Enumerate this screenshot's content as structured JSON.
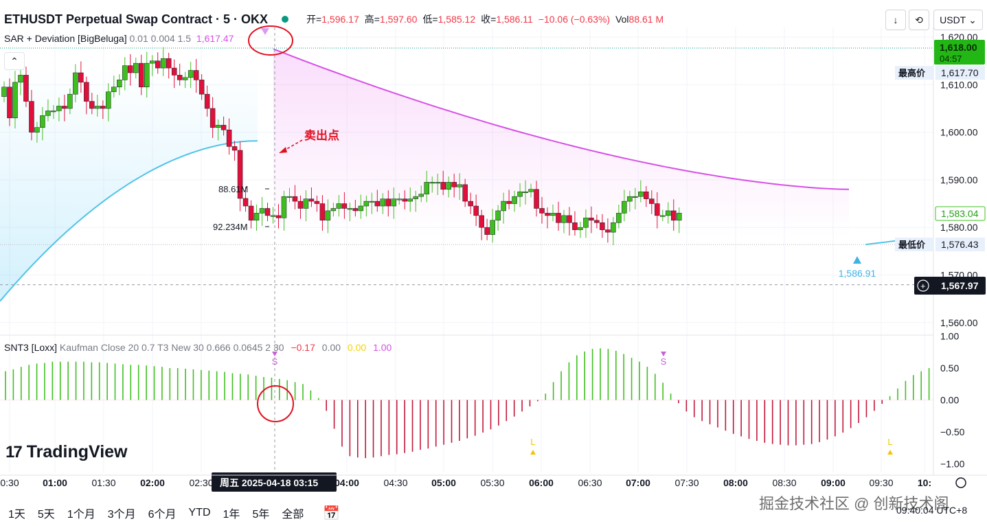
{
  "header": {
    "symbol": "ETHUSDT Perpetual Swap Contract · 5 · OKX",
    "open_label": "开=",
    "open": "1,596.17",
    "high_label": "高=",
    "high": "1,597.60",
    "low_label": "低=",
    "low": "1,585.12",
    "close_label": "收=",
    "close": "1,586.11",
    "change": "−10.06 (−0.63%)",
    "vol_label": "Vol",
    "vol": "88.61 M",
    "currency": "USDT",
    "status_color": "#089981"
  },
  "indicator1": {
    "name": "SAR + Deviation [BigBeluga]",
    "params": "0.01 0.004 1.5",
    "value": "1,617.47"
  },
  "indicator2": {
    "name": "SNT3 [Loxx]",
    "params": "Kaufman Close 20 0.7 T3 New 30 0.666 0.0645 2 30",
    "v1": "−0.17",
    "v2": "0.00",
    "v3": "0.00",
    "v4": "1.00"
  },
  "annotation": {
    "sell_label": "卖出点",
    "up_marker": "1,586.91",
    "s_marker": "S",
    "l_marker": "L"
  },
  "volume_labels": {
    "a": "88.61M",
    "b": "92.234M"
  },
  "price_tags": {
    "current": "1,618.00",
    "countdown": "04:57",
    "high_label": "最高价",
    "high_value": "1,617.70",
    "low_label": "最低价",
    "low_value": "1,576.43",
    "last": "1,583.04",
    "crosshair": "1,567.97"
  },
  "crosshair_time": "周五 2025-04-18   03:15",
  "logo_text": "TradingView",
  "bottom": {
    "ranges": [
      "1天",
      "5天",
      "1个月",
      "3个月",
      "6个月",
      "YTD",
      "1年",
      "5年",
      "全部"
    ],
    "clock": "09:40:04 UTC+8",
    "watermark": "掘金技术社区 @ 创新技术阁"
  },
  "chart_data": {
    "type": "candlestick",
    "price_axis": {
      "ticks": [
        1560,
        1570,
        1580,
        1590,
        1600,
        1610,
        1620
      ],
      "labels": [
        "1,560.00",
        "1,570.00",
        "1,580.00",
        "1,590.00",
        "1,600.00",
        "1,610.00",
        "1,620.00"
      ],
      "range": [
        1556,
        1622
      ]
    },
    "time_axis": {
      "labels": [
        "0:30",
        "01:00",
        "01:30",
        "02:00",
        "02:30",
        "04:00",
        "04:30",
        "05:00",
        "05:30",
        "06:00",
        "06:30",
        "07:00",
        "07:30",
        "08:00",
        "08:30",
        "09:00",
        "09:30",
        "10:"
      ],
      "bold": [
        "01:00",
        "02:00",
        "04:00",
        "05:00",
        "06:00",
        "07:00",
        "08:00",
        "09:00",
        "10:"
      ]
    },
    "candles_close": [
      1609.5,
      1603,
      1610.5,
      1612,
      1606.5,
      1600,
      1601,
      1603.5,
      1604.5,
      1604.5,
      1605.5,
      1605,
      1608,
      1612.5,
      1610.5,
      1606.5,
      1605,
      1605.5,
      1605,
      1608.5,
      1609.5,
      1611,
      1614,
      1612.5,
      1614.5,
      1609.5,
      1614.5,
      1615,
      1613.5,
      1615.5,
      1613.5,
      1612,
      1611,
      1611.5,
      1613,
      1611,
      1608,
      1605,
      1601,
      1601.5,
      1600.5,
      1597,
      1596.2,
      1586.1,
      1584.5,
      1581.5,
      1583,
      1584,
      1582.5,
      1582.5,
      1582,
      1586.5,
      1586.5,
      1585.5,
      1584,
      1586,
      1585.5,
      1585,
      1581.5,
      1583.5,
      1584,
      1585,
      1584,
      1584,
      1583.5,
      1584.5,
      1585.5,
      1585.5,
      1584.5,
      1586,
      1584.5,
      1586,
      1586,
      1585.5,
      1586,
      1586.5,
      1587,
      1589.5,
      1589.5,
      1589.5,
      1588,
      1589.5,
      1588.5,
      1589,
      1585.5,
      1584.5,
      1582.5,
      1580,
      1578.5,
      1581.5,
      1583.5,
      1585.5,
      1585,
      1586.5,
      1587.5,
      1587.5,
      1588,
      1584,
      1583,
      1582.5,
      1583,
      1581,
      1582.5,
      1581,
      1579.5,
      1580,
      1582,
      1581.5,
      1581,
      1579.5,
      1579,
      1581,
      1583,
      1585.5,
      1586.5,
      1586.5,
      1587.5,
      1586,
      1585,
      1582.5,
      1582.5,
      1583.5,
      1581.5,
      1583
    ],
    "sar_up_line": "fitted curve rising toward 1598",
    "deviation_down_line": "decay from 1617.5 to 1588",
    "oscillator": {
      "range": [
        -1,
        1
      ],
      "ticks": [
        "1.00",
        "0.50",
        "0.00",
        "−0.50",
        "−1.00"
      ],
      "values": [
        0.45,
        0.48,
        0.52,
        0.55,
        0.57,
        0.58,
        0.6,
        0.6,
        0.6,
        0.6,
        0.6,
        0.59,
        0.59,
        0.58,
        0.57,
        0.56,
        0.55,
        0.55,
        0.54,
        0.53,
        0.52,
        0.5,
        0.5,
        0.49,
        0.48,
        0.47,
        0.46,
        0.45,
        0.44,
        0.42,
        0.41,
        0.4,
        0.38,
        0.36,
        0.35,
        0.33,
        0.31,
        0.28,
        0.25,
        0.15,
        0.03,
        -0.17,
        -0.45,
        -0.73,
        -0.88,
        -0.9,
        -0.91,
        -0.9,
        -0.88,
        -0.86,
        -0.85,
        -0.83,
        -0.81,
        -0.78,
        -0.76,
        -0.73,
        -0.7,
        -0.67,
        -0.64,
        -0.6,
        -0.56,
        -0.51,
        -0.46,
        -0.4,
        -0.33,
        -0.26,
        -0.18,
        -0.1,
        -0.02,
        0.1,
        0.28,
        0.45,
        0.59,
        0.7,
        0.76,
        0.8,
        0.81,
        0.8,
        0.77,
        0.72,
        0.66,
        0.6,
        0.52,
        0.41,
        0.27,
        0.1,
        -0.05,
        -0.18,
        -0.27,
        -0.33,
        -0.38,
        -0.43,
        -0.48,
        -0.53,
        -0.57,
        -0.61,
        -0.64,
        -0.67,
        -0.69,
        -0.7,
        -0.71,
        -0.71,
        -0.7,
        -0.69,
        -0.66,
        -0.62,
        -0.57,
        -0.51,
        -0.44,
        -0.36,
        -0.27,
        -0.17,
        -0.06,
        0.06,
        0.18,
        0.3,
        0.39,
        0.45,
        0.5
      ]
    }
  }
}
